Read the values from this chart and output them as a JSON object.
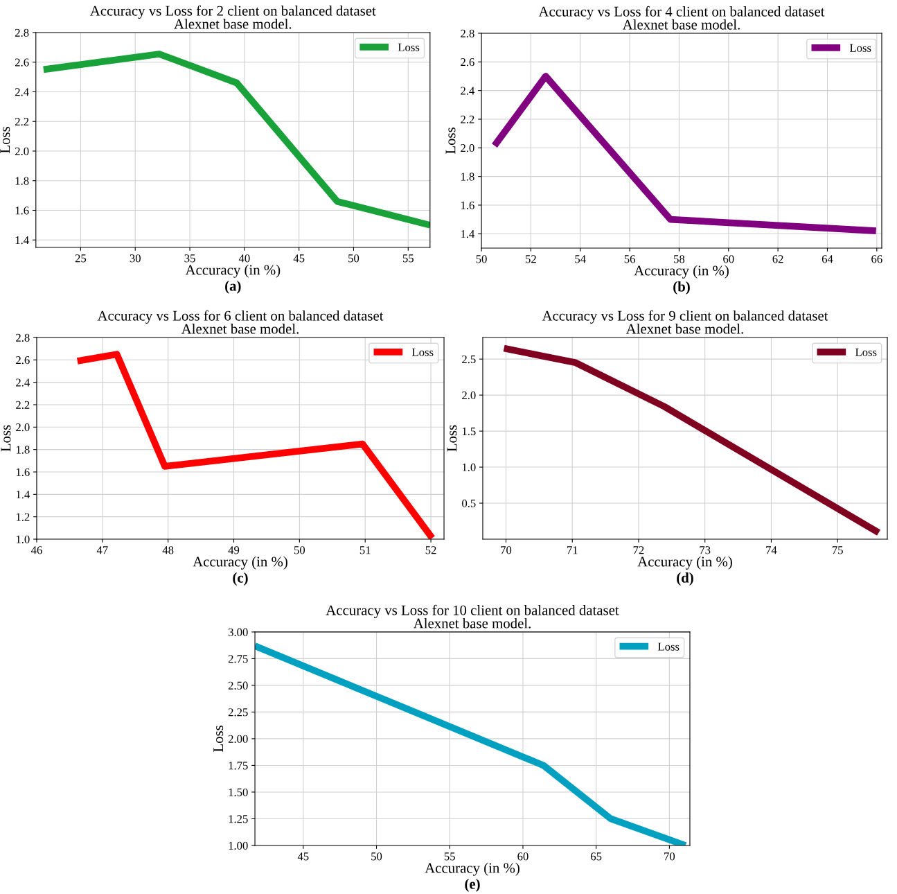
{
  "chart_data": [
    {
      "type": "line",
      "title": "Accuracy vs Loss for 2 client on balanced dataset\nAlexnet base model.",
      "xlabel": "Accuracy (in %)",
      "ylabel": "Loss",
      "annotations": [
        "(a)"
      ],
      "x": [
        21.6,
        32.2,
        39.3,
        48.5,
        57.0
      ],
      "series": [
        {
          "name": "Loss",
          "color": "#1aa23a",
          "values": [
            2.55,
            2.655,
            2.46,
            1.66,
            1.5
          ]
        }
      ],
      "xlim": [
        20.9,
        57.0
      ],
      "ylim": [
        1.35,
        2.8
      ],
      "xticks": [
        25,
        30,
        35,
        40,
        45,
        50,
        55
      ],
      "yticks": [
        1.4,
        1.6,
        1.8,
        {
          "value": 2,
          "label": "2.0"
        },
        2.2,
        2.4,
        2.6,
        2.8
      ],
      "grid": true,
      "legend": "top right"
    },
    {
      "type": "line",
      "title": "Accuracy vs Loss for 4 client on balanced dataset\nAlexnet base model.",
      "xlabel": "Accuracy (in %)",
      "ylabel": "Loss",
      "annotations": [
        "(b)"
      ],
      "x": [
        50.53,
        52.6,
        57.65,
        65.97
      ],
      "series": [
        {
          "name": "Loss",
          "color": "#800080",
          "values": [
            2.015,
            2.5,
            1.5,
            1.42
          ]
        }
      ],
      "xlim": [
        50,
        66.2
      ],
      "ylim": [
        1.3,
        2.8
      ],
      "xticks": [
        50,
        52,
        54,
        56,
        58,
        60,
        62,
        64,
        66
      ],
      "yticks": [
        1.4,
        1.6,
        1.8,
        {
          "value": 2,
          "label": "2.0"
        },
        2.2,
        2.4,
        2.6,
        2.8
      ],
      "grid": true,
      "legend": "top right"
    },
    {
      "type": "line",
      "title": "Accuracy vs Loss for 6 client on balanced dataset\nAlexnet base model.",
      "xlabel": "Accuracy (in %)",
      "ylabel": "Loss",
      "annotations": [
        "(c)"
      ],
      "x": [
        46.62,
        47.22,
        47.95,
        50.96,
        52.02
      ],
      "series": [
        {
          "name": "Loss",
          "color": "#ff0000",
          "values": [
            2.59,
            2.65,
            1.65,
            1.85,
            1.01
          ]
        }
      ],
      "xlim": [
        46,
        52.2
      ],
      "ylim": [
        1.0,
        2.8
      ],
      "xticks": [
        46,
        47,
        48,
        49,
        50,
        51,
        52
      ],
      "yticks": [
        {
          "value": 1,
          "label": "1.0"
        },
        1.2,
        1.4,
        1.6,
        1.8,
        {
          "value": 2,
          "label": "2.0"
        },
        2.2,
        2.4,
        2.6,
        2.8
      ],
      "grid": true,
      "legend": "top right"
    },
    {
      "type": "line",
      "title": "Accuracy vs Loss for 9 client on balanced dataset\nAlexnet base model.",
      "xlabel": "Accuracy (in %)",
      "ylabel": "Loss",
      "annotations": [
        "(d)"
      ],
      "x": [
        69.97,
        71.05,
        72.39,
        75.62
      ],
      "series": [
        {
          "name": "Loss",
          "color": "#800020",
          "values": [
            2.65,
            2.45,
            1.84,
            0.09
          ]
        }
      ],
      "xlim": [
        69.65,
        75.75
      ],
      "ylim": [
        0.0,
        2.8
      ],
      "xticks": [
        70,
        71,
        72,
        73,
        74,
        75
      ],
      "yticks": [
        0.5,
        {
          "value": 1,
          "label": "1.0"
        },
        1.5,
        {
          "value": 2,
          "label": "2.0"
        },
        2.5
      ],
      "grid": true,
      "legend": "top right"
    },
    {
      "type": "line",
      "title": "Accuracy vs Loss for 10 client on balanced dataset\nAlexnet base model.",
      "xlabel": "Accuracy (in %)",
      "ylabel": "Loss",
      "annotations": [
        "(e)"
      ],
      "x": [
        41.7,
        61.4,
        66.0,
        71.1
      ],
      "series": [
        {
          "name": "Loss",
          "color": "#00a0c0",
          "values": [
            2.87,
            1.75,
            1.25,
            1.0
          ]
        }
      ],
      "xlim": [
        41.7,
        71.4
      ],
      "ylim": [
        1.0,
        3.0
      ],
      "xticks": [
        45,
        50,
        55,
        60,
        65,
        70
      ],
      "yticks": [
        {
          "value": 1.0,
          "label": "1.00"
        },
        {
          "value": 1.25,
          "label": "1.25"
        },
        {
          "value": 1.5,
          "label": "1.50"
        },
        {
          "value": 1.75,
          "label": "1.75"
        },
        {
          "value": 2.0,
          "label": "2.00"
        },
        {
          "value": 2.25,
          "label": "2.25"
        },
        {
          "value": 2.5,
          "label": "2.50"
        },
        {
          "value": 2.75,
          "label": "2.75"
        },
        {
          "value": 3.0,
          "label": "3.00"
        }
      ],
      "grid": true,
      "legend": "top right"
    }
  ]
}
